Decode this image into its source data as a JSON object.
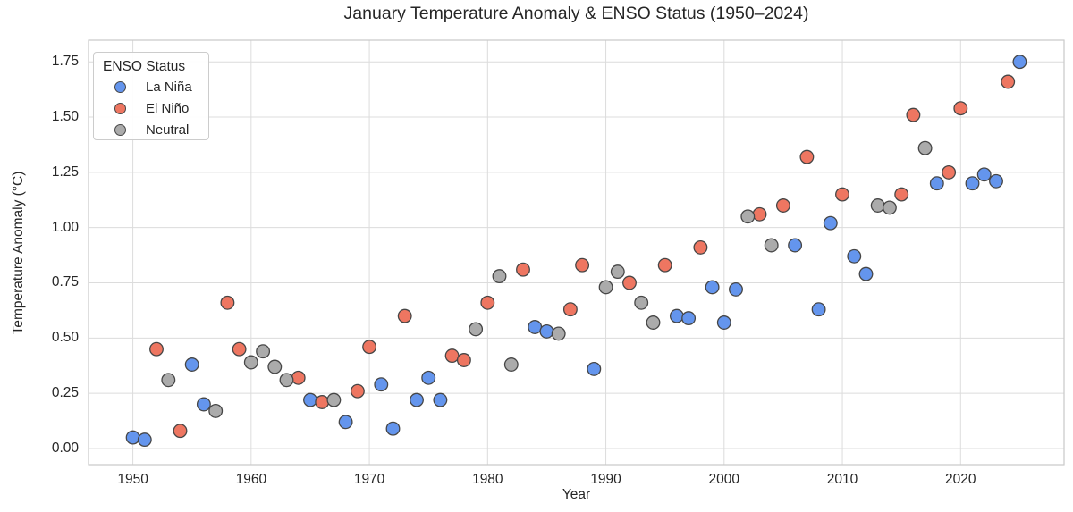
{
  "chart": {
    "title": "January Temperature Anomaly & ENSO Status (1950–2024)"
  },
  "chart_data": {
    "type": "scatter",
    "title": "January Temperature Anomaly & ENSO Status (1950–2024)",
    "xlabel": "Year",
    "ylabel": "Temperature Anomaly (°C)",
    "legend_title": "ENSO Status",
    "legend_position": "upper left",
    "grid": true,
    "xlim": [
      1946.25,
      2028.75
    ],
    "ylim": [
      -0.073,
      1.848
    ],
    "x_ticks": [
      1950,
      1960,
      1970,
      1980,
      1990,
      2000,
      2010,
      2020
    ],
    "y_ticks": [
      0.0,
      0.25,
      0.5,
      0.75,
      1.0,
      1.25,
      1.5,
      1.75
    ],
    "colors": {
      "grid": "#dcdcdc",
      "plot_border": "#c9c9c9",
      "marker_edge": "#464646",
      "text": "#262626"
    },
    "series": [
      {
        "name": "La Niña",
        "color": "#6495ED",
        "points": [
          [
            1950,
            0.05
          ],
          [
            1951,
            0.04
          ],
          [
            1955,
            0.38
          ],
          [
            1956,
            0.2
          ],
          [
            1965,
            0.22
          ],
          [
            1968,
            0.12
          ],
          [
            1971,
            0.29
          ],
          [
            1972,
            0.09
          ],
          [
            1974,
            0.22
          ],
          [
            1975,
            0.32
          ],
          [
            1976,
            0.22
          ],
          [
            1984,
            0.55
          ],
          [
            1985,
            0.53
          ],
          [
            1989,
            0.36
          ],
          [
            1996,
            0.6
          ],
          [
            1997,
            0.59
          ],
          [
            1999,
            0.73
          ],
          [
            2000,
            0.57
          ],
          [
            2001,
            0.72
          ],
          [
            2006,
            0.92
          ],
          [
            2008,
            0.63
          ],
          [
            2009,
            1.02
          ],
          [
            2011,
            0.87
          ],
          [
            2012,
            0.79
          ],
          [
            2018,
            1.2
          ],
          [
            2021,
            1.2
          ],
          [
            2022,
            1.24
          ],
          [
            2023,
            1.21
          ],
          [
            2025,
            1.75
          ]
        ]
      },
      {
        "name": "El Niño",
        "color": "#EE7661",
        "points": [
          [
            1952,
            0.45
          ],
          [
            1954,
            0.08
          ],
          [
            1958,
            0.66
          ],
          [
            1959,
            0.45
          ],
          [
            1964,
            0.32
          ],
          [
            1966,
            0.21
          ],
          [
            1969,
            0.26
          ],
          [
            1970,
            0.46
          ],
          [
            1973,
            0.6
          ],
          [
            1977,
            0.42
          ],
          [
            1978,
            0.4
          ],
          [
            1980,
            0.66
          ],
          [
            1983,
            0.81
          ],
          [
            1987,
            0.63
          ],
          [
            1988,
            0.83
          ],
          [
            1992,
            0.75
          ],
          [
            1995,
            0.83
          ],
          [
            1998,
            0.91
          ],
          [
            2003,
            1.06
          ],
          [
            2005,
            1.1
          ],
          [
            2007,
            1.32
          ],
          [
            2010,
            1.15
          ],
          [
            2015,
            1.15
          ],
          [
            2016,
            1.51
          ],
          [
            2019,
            1.25
          ],
          [
            2020,
            1.54
          ],
          [
            2024,
            1.66
          ]
        ]
      },
      {
        "name": "Neutral",
        "color": "#ABABAB",
        "points": [
          [
            1953,
            0.31
          ],
          [
            1957,
            0.17
          ],
          [
            1960,
            0.39
          ],
          [
            1961,
            0.44
          ],
          [
            1962,
            0.37
          ],
          [
            1963,
            0.31
          ],
          [
            1967,
            0.22
          ],
          [
            1979,
            0.54
          ],
          [
            1981,
            0.78
          ],
          [
            1982,
            0.38
          ],
          [
            1986,
            0.52
          ],
          [
            1990,
            0.73
          ],
          [
            1991,
            0.8
          ],
          [
            1993,
            0.66
          ],
          [
            1994,
            0.57
          ],
          [
            2002,
            1.05
          ],
          [
            2004,
            0.92
          ],
          [
            2013,
            1.1
          ],
          [
            2014,
            1.09
          ],
          [
            2017,
            1.36
          ]
        ]
      }
    ]
  }
}
